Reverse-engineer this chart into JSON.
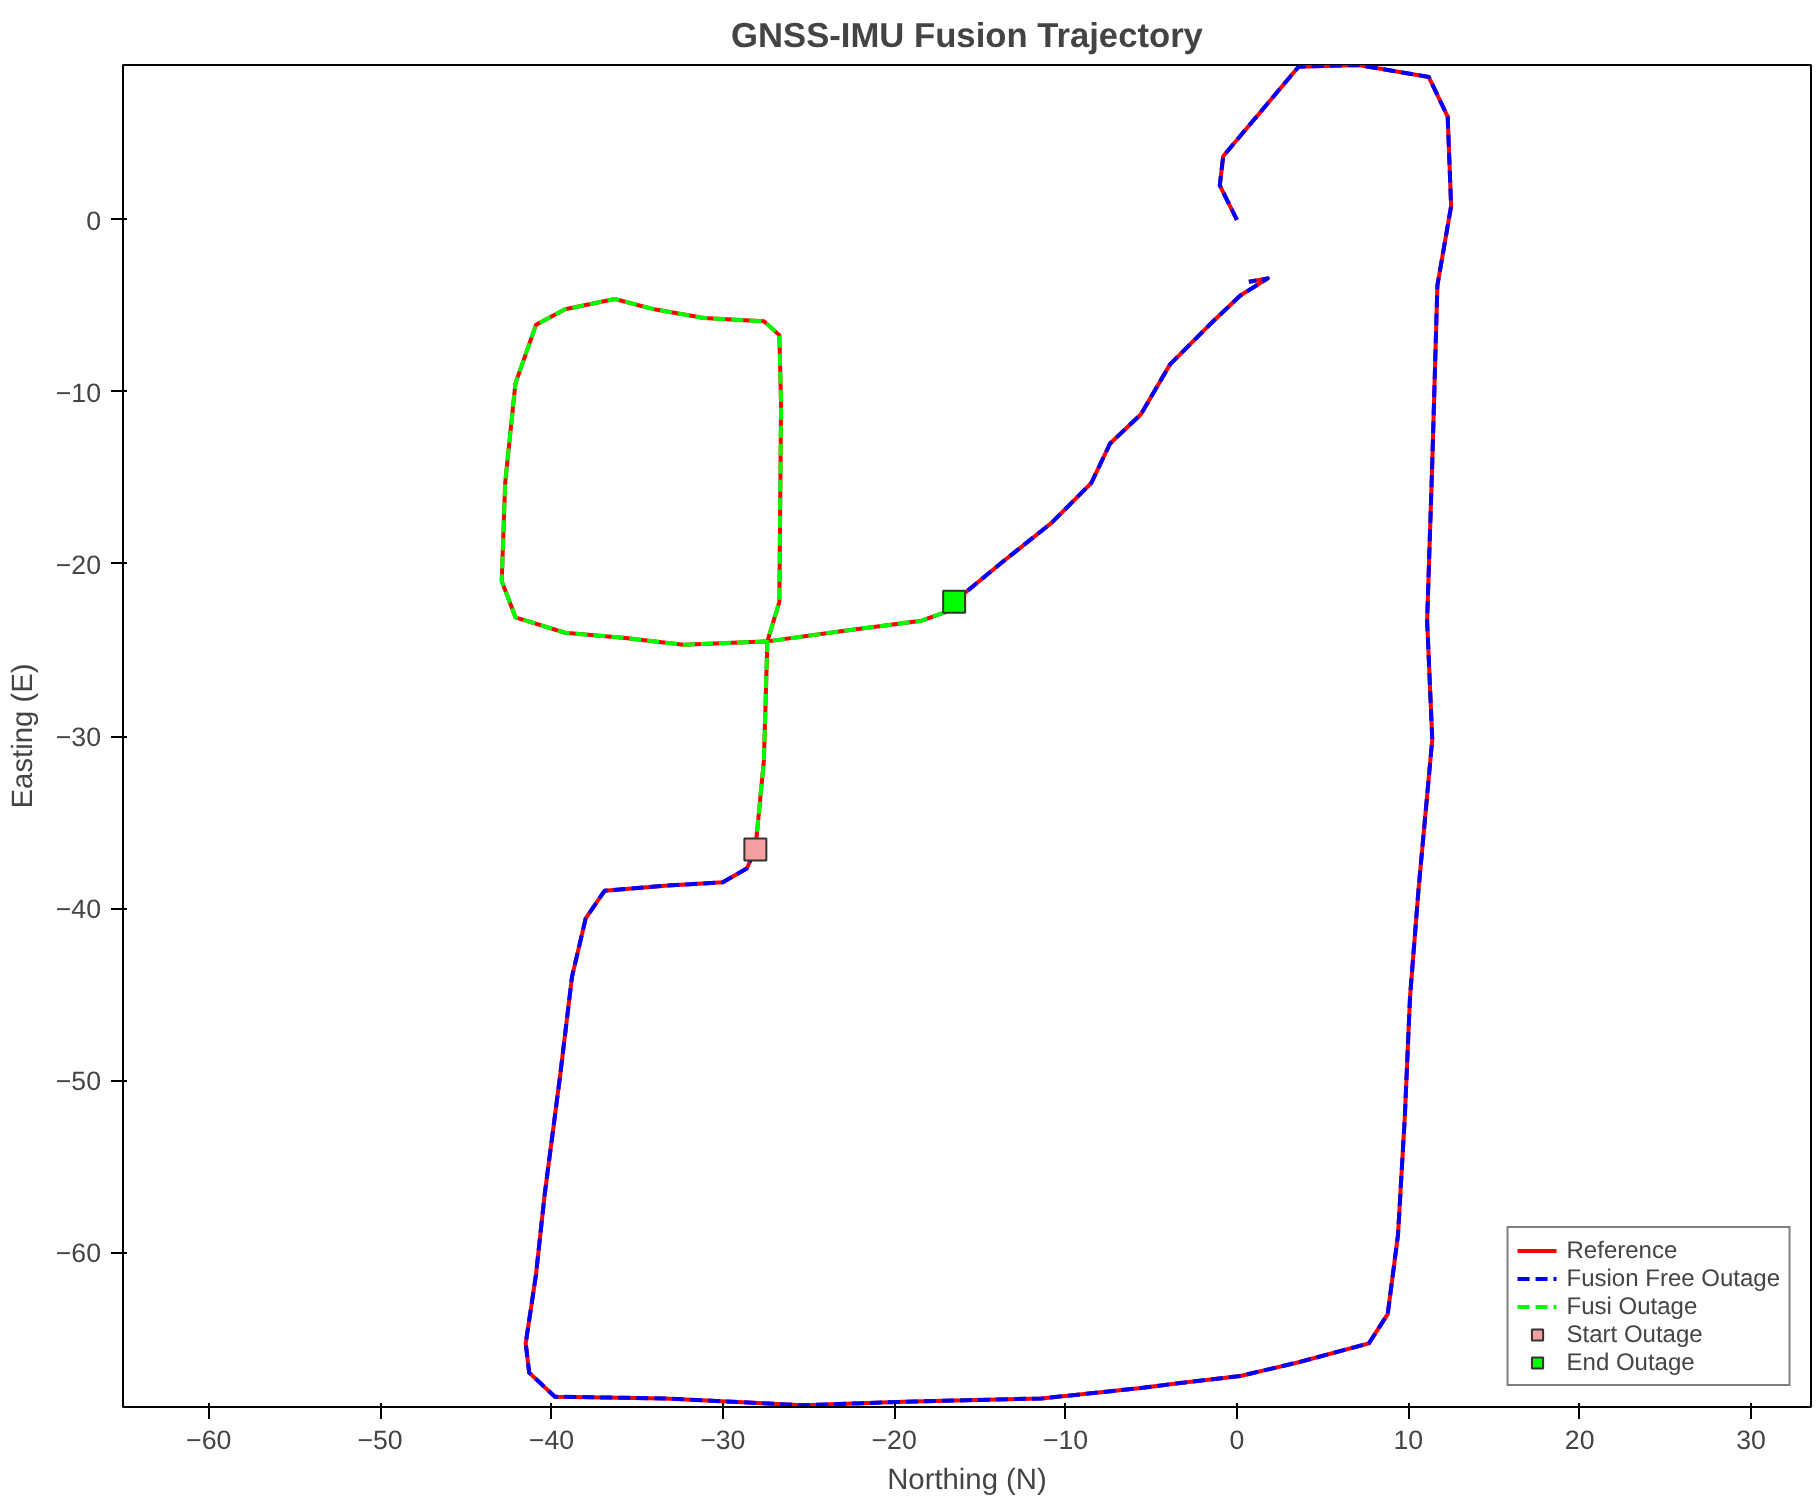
{
  "chart_data": {
    "type": "line",
    "title": "GNSS-IMU Fusion Trajectory",
    "xlabel": "Northing (N)",
    "ylabel": "Easting (E)",
    "xlim": [
      -65,
      33.5
    ],
    "ylim": [
      -69,
      9
    ],
    "xticks": [
      -60,
      -50,
      -40,
      -30,
      -20,
      -10,
      0,
      10,
      20,
      30
    ],
    "yticks": [
      -60,
      -50,
      -40,
      -30,
      -20,
      -10,
      0
    ],
    "grid": false,
    "legend": "bottom right",
    "series": [
      {
        "name": "Reference",
        "line_style": "solid",
        "color": "#ff0000",
        "x": [
          0,
          -1,
          -0.8,
          3.6,
          7.1,
          11.2,
          12.3,
          12.5,
          11.7,
          11.4,
          11.1,
          11.4,
          10.6,
          10.1,
          9.8,
          9.4,
          8.8,
          7.7,
          3.6,
          0.2,
          -3.3,
          -5.6,
          -11.4,
          -19.5,
          -25.3,
          -33.4,
          -39.8,
          -41.3,
          -41.5,
          -40.9,
          -40.4,
          -39.5,
          -38.8,
          -38,
          -36.9,
          -33.4,
          -30,
          -28.6,
          -28.1,
          -27.6,
          -27.4,
          -26.7,
          -26.6,
          -26.7,
          -27.6,
          -31.1,
          -34,
          -36.3,
          -39.2,
          -40.9,
          -42.1,
          -42.7,
          -42.9,
          -42.1,
          -39.2,
          -35.7,
          -32.3,
          -27.4,
          -23,
          -18.4,
          -17,
          -16.5,
          -13.7,
          -10.8,
          -8.5,
          -7.4,
          -5.6,
          -3.9,
          -1.6,
          0.2,
          1.8,
          0.7
        ],
        "values": [
          0,
          2,
          3.7,
          8.9,
          9,
          8.3,
          6,
          0.8,
          -3.8,
          -14.1,
          -23.3,
          -30.2,
          -38.9,
          -45.2,
          -52.1,
          -59,
          -63.6,
          -65.3,
          -66.4,
          -67.2,
          -67.6,
          -67.9,
          -68.5,
          -68.7,
          -68.9,
          -68.5,
          -68.4,
          -67,
          -65.3,
          -61.3,
          -56.7,
          -49.8,
          -44,
          -40.6,
          -39,
          -38.7,
          -38.5,
          -37.7,
          -36.6,
          -31.4,
          -24.5,
          -22.2,
          -10.7,
          -6.7,
          -5.9,
          -5.7,
          -5.2,
          -4.6,
          -5.2,
          -6.1,
          -9.5,
          -15.3,
          -21,
          -23.1,
          -24,
          -24.3,
          -24.7,
          -24.5,
          -23.9,
          -23.3,
          -22.8,
          -22.2,
          -19.9,
          -17.6,
          -15.3,
          -13,
          -11.3,
          -8.4,
          -6.1,
          -4.4,
          -3.4,
          -3.6
        ]
      },
      {
        "name": "Fusion Free Outage",
        "line_style": "dashed",
        "color": "#0000ff",
        "x": [
          0,
          -1,
          -0.8,
          3.6,
          7.1,
          11.2,
          12.3,
          12.5,
          11.7,
          11.4,
          11.1,
          11.4,
          10.6,
          10.1,
          9.8,
          9.4,
          8.8,
          7.7,
          3.6,
          0.2,
          -3.3,
          -5.6,
          -11.4,
          -19.5,
          -25.3,
          -33.4,
          -39.8,
          -41.3,
          -41.5,
          -40.9,
          -40.4,
          -39.5,
          -38.8,
          -38,
          -36.9,
          -33.4,
          -30,
          -28.6,
          -28.1,
          null,
          -16.5,
          -13.7,
          -10.8,
          -8.5,
          -7.4,
          -5.6,
          -3.9,
          -1.6,
          0.2,
          1.8,
          0.7
        ],
        "values": [
          0,
          2,
          3.7,
          8.9,
          9,
          8.3,
          6,
          0.8,
          -3.8,
          -14.1,
          -23.3,
          -30.2,
          -38.9,
          -45.2,
          -52.1,
          -59,
          -63.6,
          -65.3,
          -66.4,
          -67.2,
          -67.6,
          -67.9,
          -68.5,
          -68.7,
          -68.9,
          -68.5,
          -68.4,
          -67,
          -65.3,
          -61.3,
          -56.7,
          -49.8,
          -44,
          -40.6,
          -39,
          -38.7,
          -38.5,
          -37.7,
          -36.6,
          null,
          -22.2,
          -19.9,
          -17.6,
          -15.3,
          -13,
          -11.3,
          -8.4,
          -6.1,
          -4.4,
          -3.4,
          -3.6
        ]
      },
      {
        "name": "Fusi Outage",
        "line_style": "dashed",
        "color": "#00ff00",
        "x": [
          -28.1,
          -27.6,
          -27.4,
          -26.7,
          -26.6,
          -26.7,
          -27.6,
          -31.1,
          -34,
          -36.3,
          -39.2,
          -40.9,
          -42.1,
          -42.7,
          -42.9,
          -42.1,
          -39.2,
          -35.7,
          -32.3,
          -27.4,
          -23,
          -18.4,
          -17,
          -16.5
        ],
        "values": [
          -36.6,
          -31.4,
          -24.5,
          -22.2,
          -10.7,
          -6.7,
          -5.9,
          -5.7,
          -5.2,
          -4.6,
          -5.2,
          -6.1,
          -9.5,
          -15.3,
          -21,
          -23.1,
          -24,
          -24.3,
          -24.7,
          -24.5,
          -23.9,
          -23.3,
          -22.8,
          -22.2
        ]
      },
      {
        "name": "Start Outage",
        "type": "scatter",
        "marker": "square",
        "color": "#f4a0a0",
        "x": [
          -28.1
        ],
        "values": [
          -36.6
        ]
      },
      {
        "name": "End Outage",
        "type": "scatter",
        "marker": "square",
        "color": "#00ff00",
        "x": [
          -16.5
        ],
        "values": [
          -22.2
        ]
      }
    ]
  }
}
